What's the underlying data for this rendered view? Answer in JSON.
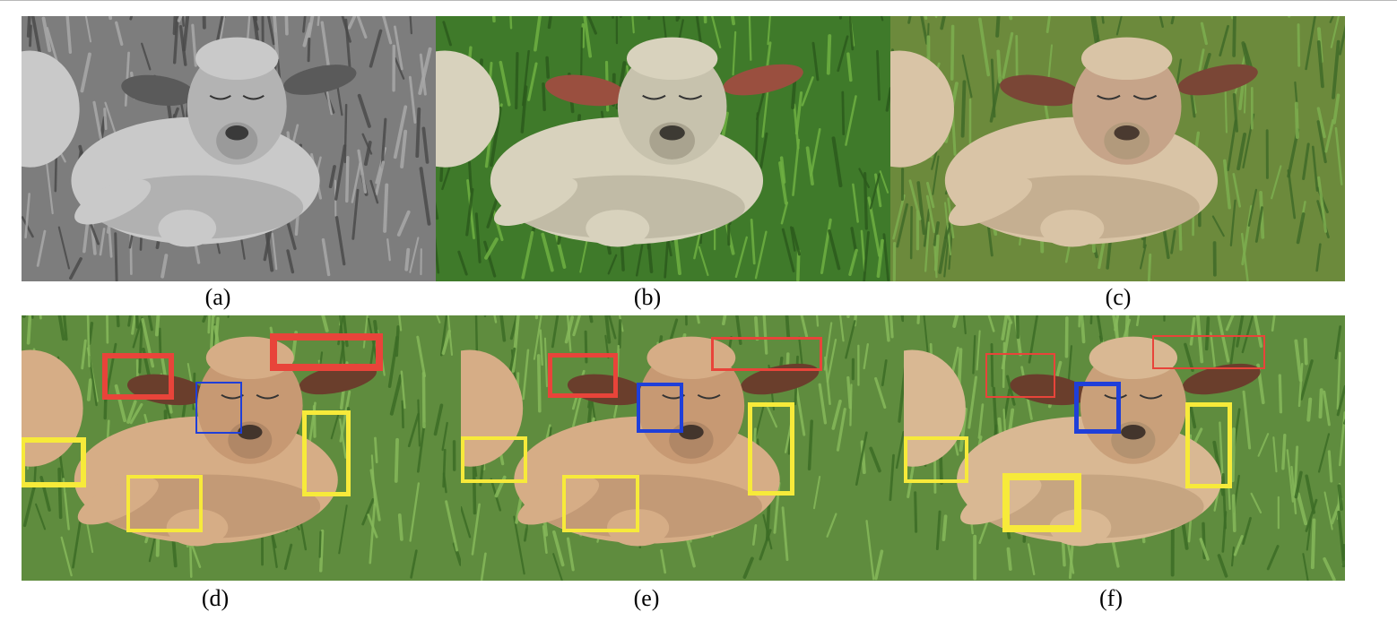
{
  "panels": [
    {
      "caption": "(a)",
      "style": "grayscale",
      "palette": {
        "bg": "#7d7d7d",
        "grass": "#a8a8a8",
        "grassDark": "#4a4a4a",
        "wool": "#c9c9c9",
        "woolShade": "#9a9a9a",
        "face": "#b3b3b3",
        "ear": "#5a5a5a",
        "nose": "#3a3a3a"
      }
    },
    {
      "caption": "(b)",
      "style": "ground-truth color",
      "palette": {
        "bg": "#3f7a2a",
        "grass": "#6fb042",
        "grassDark": "#2b5a1c",
        "wool": "#d8d2bd",
        "woolShade": "#a9a38f",
        "face": "#c7c2ad",
        "ear": "#9a4f3f",
        "nose": "#3d3a33"
      }
    },
    {
      "caption": "(c)",
      "style": "colorized",
      "palette": {
        "bg": "#6c8a3c",
        "grass": "#7cae4f",
        "grassDark": "#3f6a28",
        "wool": "#d9c4a6",
        "woolShade": "#b29a7c",
        "face": "#c6a489",
        "ear": "#7a4636",
        "nose": "#4a3a30"
      }
    },
    {
      "caption": "(d)",
      "style": "colorized with boxes",
      "palette": {
        "bg": "#5f8c3e",
        "grass": "#86b85a",
        "grassDark": "#3c6c26",
        "wool": "#d6ad86",
        "woolShade": "#b08766",
        "face": "#c79973",
        "ear": "#6a3e2c",
        "nose": "#43352c"
      }
    },
    {
      "caption": "(e)",
      "style": "colorized with boxes",
      "palette": {
        "bg": "#5f8c3e",
        "grass": "#86b85a",
        "grassDark": "#3c6c26",
        "wool": "#d6ad86",
        "woolShade": "#b08766",
        "face": "#c79973",
        "ear": "#6a3e2c",
        "nose": "#43352c"
      }
    },
    {
      "caption": "(f)",
      "style": "colorized with boxes",
      "palette": {
        "bg": "#5f8c3e",
        "grass": "#86b85a",
        "grassDark": "#3c6c26",
        "wool": "#d9b893",
        "woolShade": "#b39270",
        "face": "#c9a07a",
        "ear": "#6a3e2c",
        "nose": "#43352c"
      }
    }
  ],
  "box_colors": {
    "red": "#e8443a",
    "blue": "#1f3fd9",
    "yellow": "#f7ea3a"
  }
}
